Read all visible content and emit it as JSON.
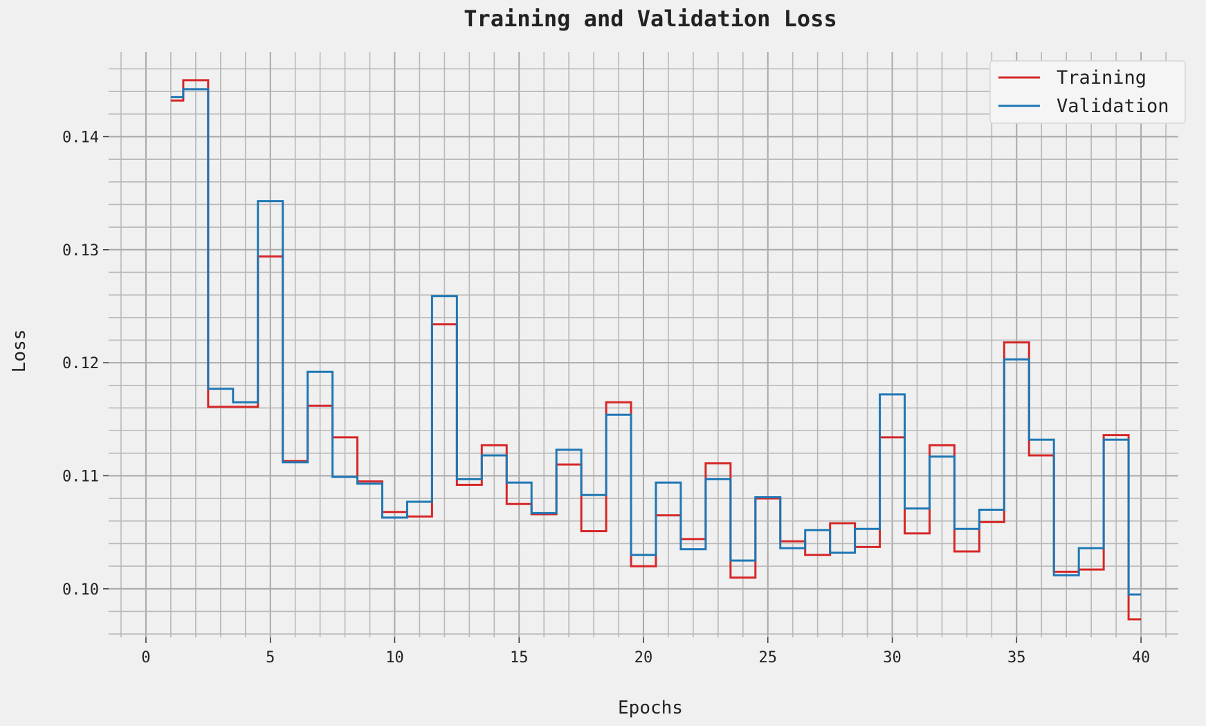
{
  "chart_data": {
    "type": "line",
    "title": "Training and Validation Loss",
    "xlabel": "Epochs",
    "ylabel": "Loss",
    "xlim": [
      -1.5,
      41.5
    ],
    "ylim": [
      0.0957,
      0.1475
    ],
    "x_ticks": [
      0,
      5,
      10,
      15,
      20,
      25,
      30,
      35,
      40
    ],
    "x_tick_labels": [
      "0",
      "5",
      "10",
      "15",
      "20",
      "25",
      "30",
      "35",
      "40"
    ],
    "y_ticks": [
      0.1,
      0.11,
      0.12,
      0.13,
      0.14
    ],
    "y_tick_labels": [
      "0.10",
      "0.11",
      "0.12",
      "0.13",
      "0.14"
    ],
    "x_minor_step": 1,
    "y_minor_step": 0.002,
    "grid": true,
    "legend_position": "top-right",
    "line_style": "step-mid",
    "x": [
      1,
      2,
      3,
      4,
      5,
      6,
      7,
      8,
      9,
      10,
      11,
      12,
      13,
      14,
      15,
      16,
      17,
      18,
      19,
      20,
      21,
      22,
      23,
      24,
      25,
      26,
      27,
      28,
      29,
      30,
      31,
      32,
      33,
      34,
      35,
      36,
      37,
      38,
      39,
      40
    ],
    "series": [
      {
        "name": "Training",
        "color": "#d62728",
        "values": [
          0.1432,
          0.145,
          0.1161,
          0.1161,
          0.1294,
          0.1113,
          0.1162,
          0.1134,
          0.1095,
          0.1068,
          0.1064,
          0.1234,
          0.1092,
          0.1127,
          0.1075,
          0.1066,
          0.111,
          0.1051,
          0.1165,
          0.102,
          0.1065,
          0.1044,
          0.1111,
          0.101,
          0.108,
          0.1042,
          0.103,
          0.1058,
          0.1037,
          0.1134,
          0.1049,
          0.1127,
          0.1033,
          0.1059,
          0.1218,
          0.1118,
          0.1015,
          0.1017,
          0.1136,
          0.0973
        ]
      },
      {
        "name": "Validation",
        "color": "#1f77b4",
        "values": [
          0.1435,
          0.1442,
          0.1177,
          0.1165,
          0.1343,
          0.1112,
          0.1192,
          0.1099,
          0.1093,
          0.1063,
          0.1077,
          0.1259,
          0.1097,
          0.1118,
          0.1094,
          0.1067,
          0.1123,
          0.1083,
          0.1154,
          0.103,
          0.1094,
          0.1035,
          0.1097,
          0.1025,
          0.1081,
          0.1036,
          0.1052,
          0.1032,
          0.1053,
          0.1172,
          0.1071,
          0.1117,
          0.1053,
          0.107,
          0.1203,
          0.1132,
          0.1012,
          0.1036,
          0.1132,
          0.0995
        ]
      }
    ]
  }
}
